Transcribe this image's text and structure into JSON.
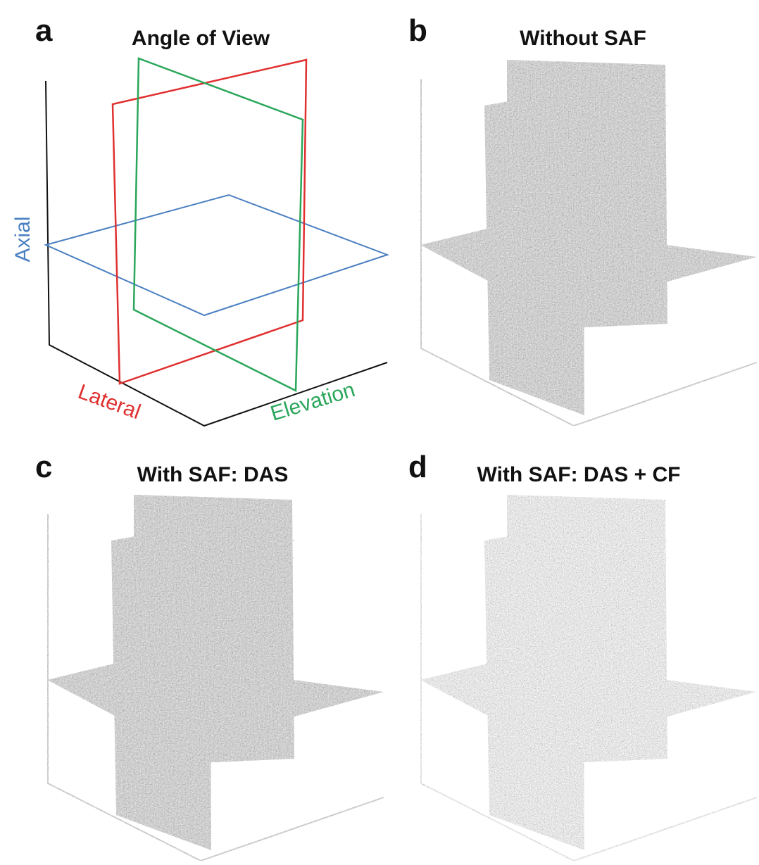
{
  "panels": [
    {
      "label": "a",
      "title": "Angle of View",
      "axis_labels": {
        "axial": "Axial",
        "lateral": "Lateral",
        "elevation": "Elevation"
      }
    },
    {
      "label": "b",
      "title": "Without SAF"
    },
    {
      "label": "c",
      "title": "With SAF: DAS"
    },
    {
      "label": "d",
      "title": "With SAF: DAS + CF"
    }
  ]
}
